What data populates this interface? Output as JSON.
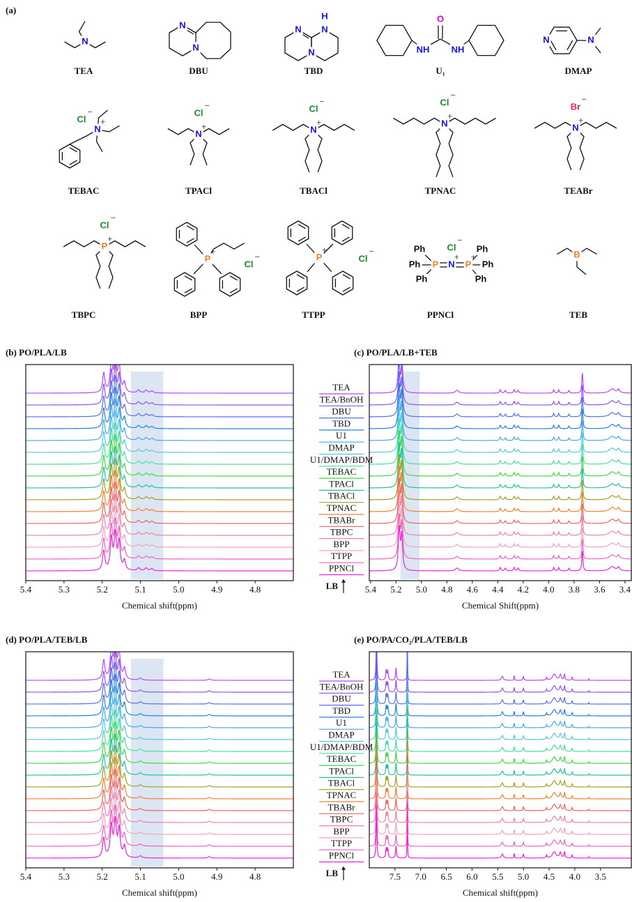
{
  "structures": {
    "label": "(a)",
    "compounds": [
      {
        "name": "TEA",
        "atoms": [
          {
            "text": "N",
            "color": "#1414e0"
          }
        ]
      },
      {
        "name": "DBU",
        "atoms": [
          {
            "text": "N",
            "color": "#1414e0"
          },
          {
            "text": "N",
            "color": "#1414e0"
          }
        ]
      },
      {
        "name": "TBD",
        "atoms": [
          {
            "text": "H",
            "color": "#1414e0"
          },
          {
            "text": "N",
            "color": "#1414e0"
          },
          {
            "text": "N",
            "color": "#1414e0"
          },
          {
            "text": "N",
            "color": "#1414e0"
          }
        ]
      },
      {
        "name": "U₁",
        "atoms": [
          {
            "text": "O",
            "color": "#e000e0"
          },
          {
            "text": "NH",
            "color": "#1414e0"
          },
          {
            "text": "NH",
            "color": "#1414e0"
          }
        ]
      },
      {
        "name": "DMAP",
        "atoms": [
          {
            "text": "N",
            "color": "#1414e0"
          },
          {
            "text": "N",
            "color": "#1414e0"
          }
        ]
      },
      {
        "name": "TEBAC",
        "atoms": [
          {
            "text": "Cl",
            "color": "#1a8a2a",
            "charge": "−"
          },
          {
            "text": "N",
            "color": "#1414e0",
            "charge": "+"
          }
        ]
      },
      {
        "name": "TPACl",
        "atoms": [
          {
            "text": "Cl",
            "color": "#1a8a2a",
            "charge": "−"
          },
          {
            "text": "N",
            "color": "#1414e0",
            "charge": "+"
          }
        ]
      },
      {
        "name": "TBACl",
        "atoms": [
          {
            "text": "Cl",
            "color": "#1a8a2a",
            "charge": "−"
          },
          {
            "text": "N",
            "color": "#1414e0",
            "charge": "+"
          }
        ]
      },
      {
        "name": "TPNAC",
        "atoms": [
          {
            "text": "Cl",
            "color": "#1a8a2a",
            "charge": "−"
          },
          {
            "text": "N",
            "color": "#1414e0",
            "charge": "+"
          }
        ]
      },
      {
        "name": "TEABr",
        "atoms": [
          {
            "text": "Br",
            "color": "#e8207a",
            "charge": "−"
          },
          {
            "text": "N",
            "color": "#1414e0",
            "charge": "+"
          }
        ]
      },
      {
        "name": "TBPC",
        "atoms": [
          {
            "text": "Cl",
            "color": "#1a8a2a",
            "charge": "−"
          },
          {
            "text": "P",
            "color": "#f08020",
            "charge": "+"
          }
        ]
      },
      {
        "name": "BPP",
        "atoms": [
          {
            "text": "P",
            "color": "#f08020",
            "charge": "+"
          },
          {
            "text": "Cl",
            "color": "#1a8a2a",
            "charge": "−"
          }
        ]
      },
      {
        "name": "TTPP",
        "atoms": [
          {
            "text": "P",
            "color": "#f08020",
            "charge": "+"
          },
          {
            "text": "Cl",
            "color": "#1a8a2a",
            "charge": "−"
          }
        ]
      },
      {
        "name": "PPNCl",
        "atoms": [
          {
            "text": "Ph",
            "color": "#111111"
          },
          {
            "text": "Ph",
            "color": "#111111"
          },
          {
            "text": "Ph",
            "color": "#111111"
          },
          {
            "text": "P",
            "color": "#f08020"
          },
          {
            "text": "N",
            "color": "#1414e0",
            "charge": "+"
          },
          {
            "text": "P",
            "color": "#f08020",
            "charge": "+"
          },
          {
            "text": "Ph",
            "color": "#111111"
          },
          {
            "text": "Ph",
            "color": "#111111"
          },
          {
            "text": "Ph",
            "color": "#111111"
          },
          {
            "text": "Cl",
            "color": "#1a8a2a",
            "charge": "−"
          }
        ]
      },
      {
        "name": "TEB",
        "atoms": [
          {
            "text": "B",
            "color": "#f08020"
          }
        ]
      }
    ]
  },
  "chart_data": [
    {
      "type": "spectrum",
      "title": "(b) PO/PLA/LB",
      "x_label": "Chemical shift(ppm)",
      "xlim": [
        5.4,
        4.7
      ],
      "xticks": [
        5.4,
        5.3,
        5.2,
        5.1,
        {
          "value": 5,
          "label": "5.0"
        },
        4.9,
        4.8
      ],
      "highlight": [
        5.125,
        5.04
      ],
      "annotation": "LB",
      "peaks": [
        [
          5.196,
          28,
          0.0035
        ],
        [
          5.176,
          45,
          0.0035
        ],
        [
          5.166,
          50,
          0.0035
        ],
        [
          5.156,
          40,
          0.0035
        ],
        [
          5.142,
          14,
          0.0035
        ],
        [
          5.105,
          4,
          0.004
        ],
        [
          5.085,
          4,
          0.004
        ],
        [
          5.07,
          3,
          0.004
        ]
      ],
      "series": [
        {
          "name": "TEA",
          "color": "#c040ff"
        },
        {
          "name": "TEA/BnOH",
          "color": "#9050f0"
        },
        {
          "name": "DBU",
          "color": "#5070f0"
        },
        {
          "name": "TBD",
          "color": "#2080e0"
        },
        {
          "name": "U1",
          "color": "#40a8f0"
        },
        {
          "name": "DMAP",
          "color": "#50c8e0"
        },
        {
          "name": "U1/DMAP/BDM",
          "color": "#40e0a0"
        },
        {
          "name": "TEBAC",
          "color": "#40d840"
        },
        {
          "name": "TPACl",
          "color": "#20c0a0"
        },
        {
          "name": "TBACl",
          "color": "#a0a020"
        },
        {
          "name": "TPNAC",
          "color": "#f08030"
        },
        {
          "name": "TBABr",
          "color": "#f06060"
        },
        {
          "name": "TBPC",
          "color": "#f080a0"
        },
        {
          "name": "BPP",
          "color": "#f0a0c0"
        },
        {
          "name": "TTPP",
          "color": "#f060c0"
        },
        {
          "name": "PPNCl",
          "color": "#f020e0"
        }
      ]
    },
    {
      "type": "spectrum",
      "title": "(c) PO/PLA/LB+TEB",
      "x_label": "Chemical Shift(ppm)",
      "xlim": [
        5.41,
        3.35
      ],
      "xticks": [
        5.4,
        5.2,
        {
          "value": 5,
          "label": "5.0"
        },
        4.8,
        4.6,
        4.4,
        4.2,
        {
          "value": 4,
          "label": "4.0"
        },
        3.8,
        3.6,
        3.4
      ],
      "highlight": [
        5.165,
        5.015
      ],
      "peaks": [
        [
          5.175,
          60,
          0.008
        ],
        [
          5.155,
          50,
          0.008
        ],
        [
          4.72,
          4,
          0.015
        ],
        [
          4.38,
          5,
          0.006
        ],
        [
          4.34,
          4,
          0.006
        ],
        [
          4.27,
          5,
          0.006
        ],
        [
          4.24,
          4,
          0.006
        ],
        [
          3.96,
          5,
          0.005
        ],
        [
          3.92,
          5,
          0.005
        ],
        [
          3.84,
          4,
          0.005
        ],
        [
          3.735,
          30,
          0.005
        ],
        [
          3.5,
          6,
          0.025
        ],
        [
          3.45,
          5,
          0.01
        ]
      ],
      "colors": [
        "#c040ff",
        "#9050f0",
        "#5070f0",
        "#2080e0",
        "#40a8f0",
        "#50c8e0",
        "#40e0a0",
        "#40d840",
        "#20c0a0",
        "#a0a020",
        "#f08030",
        "#f06060",
        "#f080a0",
        "#f0a0c0",
        "#f060c0",
        "#f020e0"
      ]
    },
    {
      "type": "spectrum",
      "title": "(d) PO/PLA/TEB/LB",
      "x_label": "Chemical shift(ppm)",
      "xlim": [
        5.4,
        4.7
      ],
      "xticks": [
        5.4,
        5.3,
        5.2,
        5.1,
        {
          "value": 5,
          "label": "5.0"
        },
        4.9,
        4.8
      ],
      "highlight": [
        5.125,
        5.04
      ],
      "annotation": "LB",
      "peaks": [
        [
          5.196,
          28,
          0.0035
        ],
        [
          5.176,
          45,
          0.0035
        ],
        [
          5.166,
          50,
          0.0035
        ],
        [
          5.156,
          40,
          0.0035
        ],
        [
          5.142,
          16,
          0.0035
        ],
        [
          5.1,
          3,
          0.004
        ],
        [
          4.92,
          2,
          0.004
        ]
      ],
      "series": [
        {
          "name": "TEA",
          "color": "#c040ff"
        },
        {
          "name": "TEA/BnOH",
          "color": "#9050f0"
        },
        {
          "name": "DBU",
          "color": "#5070f0"
        },
        {
          "name": "TBD",
          "color": "#2080e0"
        },
        {
          "name": "U1",
          "color": "#40a8f0"
        },
        {
          "name": "DMAP",
          "color": "#50c8e0"
        },
        {
          "name": "U1/DMAP/BDM",
          "color": "#40e0a0"
        },
        {
          "name": "TEBAC",
          "color": "#40d840"
        },
        {
          "name": "TPACl",
          "color": "#20c0a0"
        },
        {
          "name": "TBACl",
          "color": "#a0a020"
        },
        {
          "name": "TPNAC",
          "color": "#f08030"
        },
        {
          "name": "TBABr",
          "color": "#f06060"
        },
        {
          "name": "TBPC",
          "color": "#f080a0"
        },
        {
          "name": "BPP",
          "color": "#f0a0c0"
        },
        {
          "name": "TTPP",
          "color": "#f060c0"
        },
        {
          "name": "PPNCl",
          "color": "#f020e0"
        }
      ]
    },
    {
      "type": "spectrum",
      "title": "(e) PO/PA/CO₂/PLA/TEB/LB",
      "x_label": "Chemical shift(ppm)",
      "xlim": [
        8.0,
        2.9
      ],
      "xticks": [
        7.5,
        {
          "value": 7,
          "label": "7.0"
        },
        6.5,
        {
          "value": 6,
          "label": "6.0"
        },
        5.5,
        {
          "value": 5,
          "label": "5.0"
        },
        4.5,
        {
          "value": 4,
          "label": "4.0"
        },
        3.5
      ],
      "peaks": [
        [
          7.86,
          80,
          0.008
        ],
        [
          7.67,
          16,
          0.01
        ],
        [
          7.64,
          14,
          0.01
        ],
        [
          7.48,
          18,
          0.01
        ],
        [
          7.26,
          80,
          0.004
        ],
        [
          5.41,
          6,
          0.02
        ],
        [
          5.18,
          12,
          0.004
        ],
        [
          5.0,
          6,
          0.01
        ],
        [
          4.55,
          4,
          0.01
        ],
        [
          4.4,
          9,
          0.04
        ],
        [
          4.28,
          8,
          0.02
        ],
        [
          4.2,
          9,
          0.01
        ],
        [
          4.05,
          5,
          0.008
        ],
        [
          3.73,
          3,
          0.004
        ]
      ],
      "colors": [
        "#c040ff",
        "#9050f0",
        "#5070f0",
        "#2080e0",
        "#40a8f0",
        "#50c8e0",
        "#40e0a0",
        "#40d840",
        "#20c0a0",
        "#a0a020",
        "#f08030",
        "#f06060",
        "#f080a0",
        "#f0a0c0",
        "#f060c0",
        "#f020e0"
      ]
    }
  ]
}
